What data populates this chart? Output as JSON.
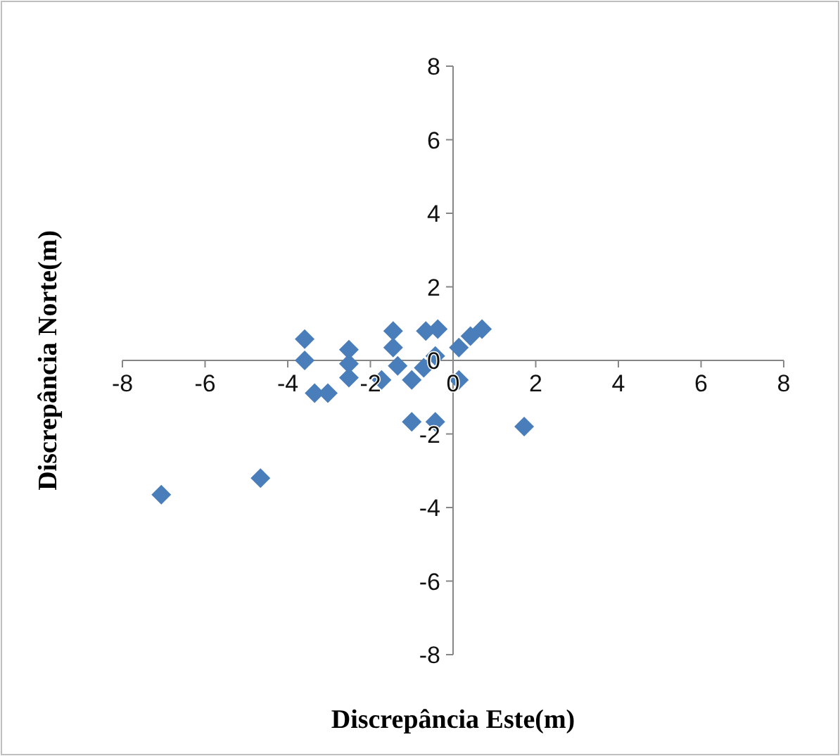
{
  "chart_data": {
    "type": "scatter",
    "xlabel": "Discrepância Este(m)",
    "ylabel": "Discrepância Norte(m)",
    "marker": "diamond",
    "grid": false,
    "xlim": [
      -8,
      8
    ],
    "ylim": [
      -8,
      8
    ],
    "xticks": [
      -8,
      -6,
      -4,
      -2,
      0,
      2,
      4,
      6,
      8
    ],
    "yticks": [
      -8,
      -6,
      -4,
      -2,
      0,
      2,
      4,
      6,
      8
    ],
    "series": [
      {
        "color": "#4a7ebb",
        "x": [
          -7.06,
          -4.66,
          -3.59,
          -3.59,
          -3.35,
          -3.03,
          -2.52,
          -2.52,
          -2.52,
          -1.73,
          -1.45,
          -1.45,
          -1.34,
          -1.0,
          -0.71,
          -0.43,
          -0.66,
          -0.37,
          -1.0,
          -0.43,
          0.14,
          0.14,
          0.42,
          0.7,
          1.72
        ],
        "values": [
          -3.65,
          -3.2,
          0.58,
          0,
          -0.89,
          -0.89,
          0.29,
          -0.09,
          -0.47,
          -0.53,
          0.8,
          0.35,
          -0.15,
          -0.53,
          -0.2,
          0.12,
          0.8,
          0.85,
          -1.67,
          -1.67,
          -0.53,
          0.35,
          0.66,
          0.85,
          -1.8
        ]
      }
    ]
  }
}
